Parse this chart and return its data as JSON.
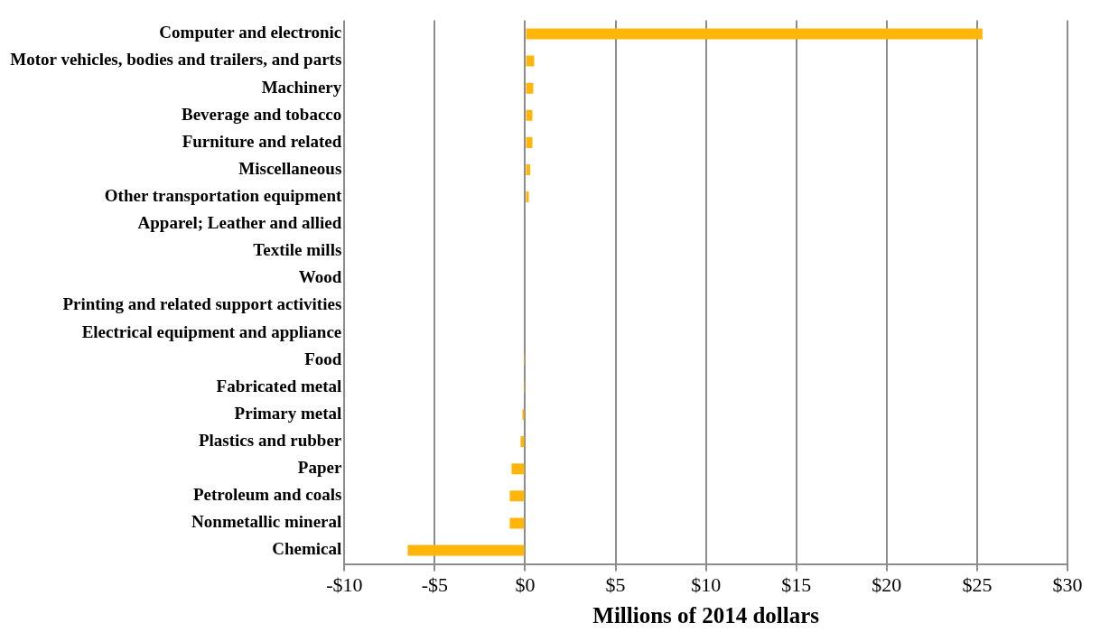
{
  "chart_data": {
    "type": "bar",
    "orientation": "horizontal",
    "xlabel": "Millions of 2014 dollars",
    "categories": [
      "Computer and electronic",
      "Motor vehicles, bodies and trailers, and parts",
      "Machinery",
      "Beverage and tobacco",
      "Furniture and related",
      "Miscellaneous",
      "Other transportation equipment",
      "Apparel; Leather and allied",
      "Textile mills",
      "Wood",
      "Printing and related support activities",
      "Electrical equipment and appliance",
      "Food",
      "Fabricated metal",
      "Primary metal",
      "Plastics and rubber",
      "Paper",
      "Petroleum and coals",
      "Nonmetallic mineral",
      "Chemical"
    ],
    "values": [
      25.3,
      0.5,
      0.45,
      0.4,
      0.4,
      0.28,
      0.2,
      0.05,
      0,
      0,
      0,
      0,
      -0.02,
      -0.02,
      -0.15,
      -0.25,
      -0.75,
      -0.85,
      -0.85,
      -6.5
    ],
    "color": "#ffb60b",
    "xlim": [
      -10,
      30
    ],
    "xticks": [
      {
        "value": -10,
        "label": "-$10"
      },
      {
        "value": -5,
        "label": "-$5"
      },
      {
        "value": 0,
        "label": "$0"
      },
      {
        "value": 5,
        "label": "$5"
      },
      {
        "value": 10,
        "label": "$10"
      },
      {
        "value": 15,
        "label": "$15"
      },
      {
        "value": 20,
        "label": "$20"
      },
      {
        "value": 25,
        "label": "$25"
      },
      {
        "value": 30,
        "label": "$30"
      }
    ],
    "grid": "x"
  }
}
